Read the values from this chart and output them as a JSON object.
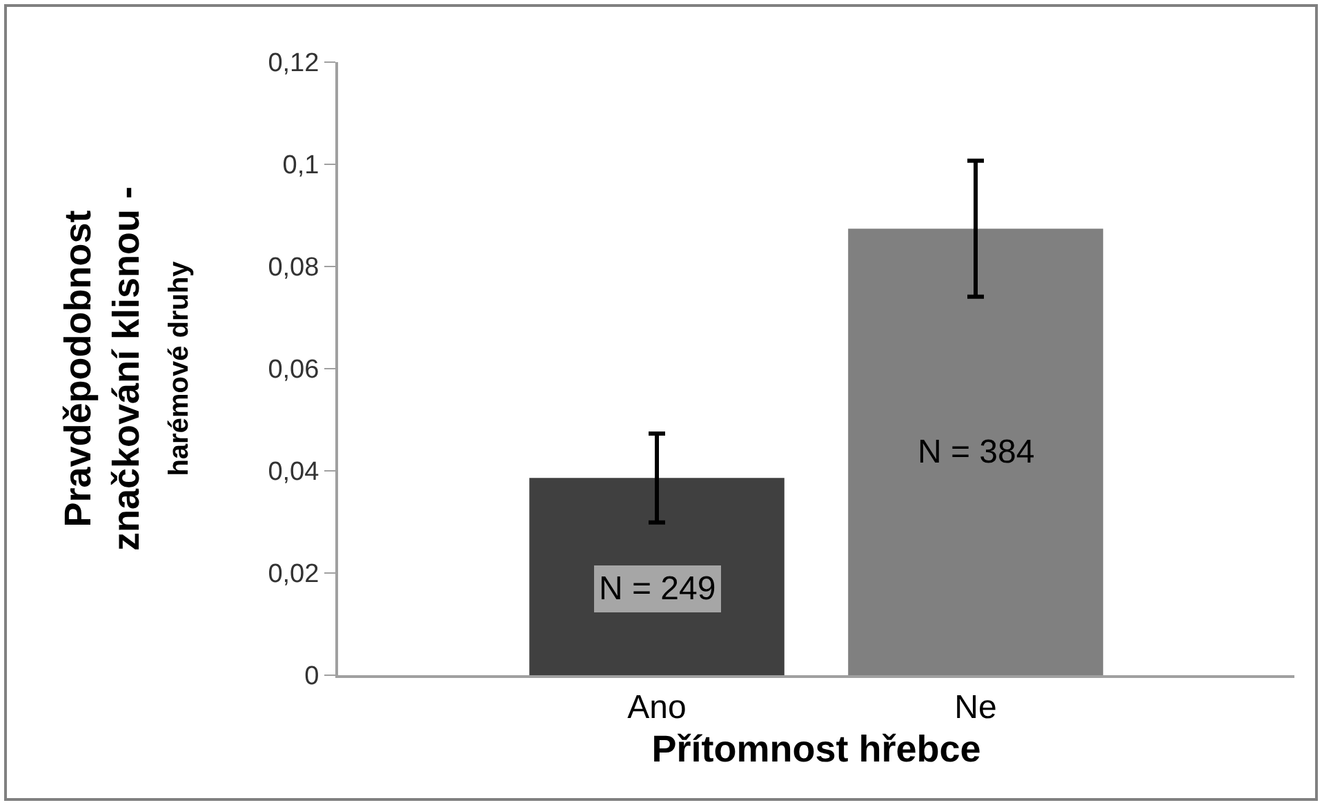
{
  "chart_data": {
    "type": "bar",
    "xlabel": "Přítomnost hřebce",
    "ylabel": "Pravděpodobnost\nznačkování klisnou -\nharémové druhy",
    "categories": [
      "Ano",
      "Ne"
    ],
    "values": [
      0.0386,
      0.0874
    ],
    "colors": [
      "#404040",
      "#808080"
    ],
    "errors": [
      0.0087,
      0.0133
    ],
    "ylim": [
      0,
      0.12
    ],
    "yticks": [
      0,
      {
        "value": 0.02,
        "label": "0,02"
      },
      {
        "value": 0.04,
        "label": "0,04"
      },
      {
        "value": 0.06,
        "label": "0,06"
      },
      {
        "value": 0.08,
        "label": "0,08"
      },
      {
        "value": 0.1,
        "label": "0,1"
      },
      {
        "value": 0.12,
        "label": "0,12"
      }
    ],
    "annotations": [
      "N = 249",
      "N = 384"
    ]
  }
}
